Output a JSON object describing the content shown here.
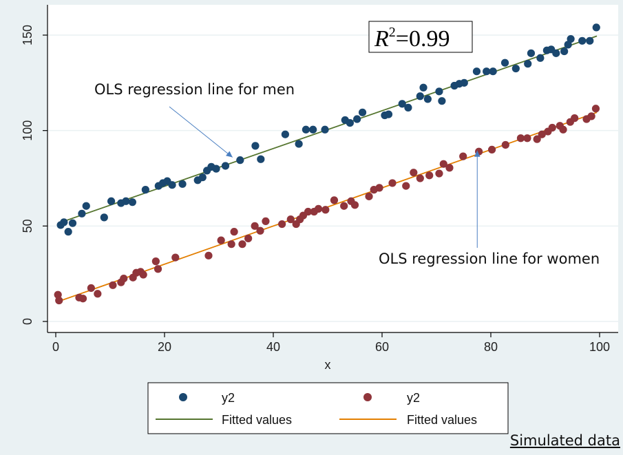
{
  "chart_data": {
    "type": "scatter",
    "title": "",
    "xlabel": "x",
    "ylabel": "",
    "xlim": [
      -2,
      101
    ],
    "ylim": [
      -2,
      157
    ],
    "xticks": [
      0,
      20,
      40,
      60,
      80,
      100
    ],
    "yticks": [
      0,
      50,
      100,
      150
    ],
    "xtick_labels": [
      "0",
      "20",
      "40",
      "60",
      "80",
      "100"
    ],
    "ytick_labels": [
      "0",
      "50",
      "100",
      "150"
    ],
    "grid": true,
    "colors": {
      "men": "#1a476f",
      "women": "#90353b",
      "fit_men": "#55752f",
      "fit_women": "#e37e00",
      "background": "#eaf1f3"
    },
    "series": [
      {
        "name": "y2",
        "kind": "scatter",
        "group": "men",
        "x": [
          0.9,
          1.5,
          2.3,
          3.1,
          4.8,
          5.6,
          8.9,
          10.2,
          12.0,
          12.9,
          14.1,
          16.5,
          18.9,
          19.7,
          20.5,
          21.4,
          23.3,
          26.1,
          27.0,
          27.8,
          28.6,
          29.5,
          31.2,
          33.9,
          36.7,
          37.7,
          42.2,
          44.7,
          46.0,
          47.3,
          49.5,
          53.2,
          54.1,
          55.4,
          56.4,
          60.5,
          61.2,
          63.7,
          64.8,
          67.0,
          67.6,
          68.4,
          70.5,
          71.0,
          73.3,
          74.2,
          75.1,
          77.4,
          79.2,
          80.4,
          82.6,
          84.6,
          86.8,
          87.4,
          89.1,
          90.3,
          91.1,
          92.0,
          93.5,
          94.2,
          94.7,
          96.8,
          98.2,
          99.4
        ],
        "y": [
          50.5,
          52.0,
          47.0,
          51.5,
          56.5,
          60.5,
          54.5,
          63.0,
          62.0,
          63.0,
          62.5,
          69.0,
          71.0,
          72.5,
          73.5,
          71.5,
          72.0,
          74.0,
          75.5,
          79.0,
          81.0,
          80.0,
          81.5,
          84.5,
          92.0,
          85.0,
          98.0,
          93.0,
          100.5,
          100.5,
          100.5,
          105.5,
          104.0,
          106.0,
          109.5,
          108.0,
          108.5,
          114.0,
          112.0,
          118.0,
          122.5,
          116.5,
          120.5,
          115.5,
          123.5,
          124.5,
          125.0,
          131.0,
          131.0,
          131.0,
          135.5,
          132.5,
          135.0,
          140.5,
          138.0,
          142.0,
          142.5,
          140.5,
          141.5,
          145.0,
          148.0,
          147.0,
          147.0,
          154.0
        ]
      },
      {
        "name": "Fitted values",
        "kind": "line",
        "group": "men",
        "x": [
          0.5,
          99.5
        ],
        "y": [
          51.5,
          149.5
        ]
      },
      {
        "name": "y2",
        "kind": "scatter",
        "group": "women",
        "x": [
          0.4,
          0.6,
          4.3,
          5.0,
          6.5,
          7.7,
          10.5,
          12.0,
          12.5,
          14.2,
          14.8,
          15.6,
          16.1,
          18.4,
          18.8,
          22.0,
          28.1,
          30.4,
          32.3,
          32.8,
          34.3,
          35.4,
          36.6,
          37.6,
          38.6,
          41.6,
          43.2,
          44.2,
          44.9,
          45.5,
          46.4,
          47.5,
          48.3,
          49.6,
          51.2,
          53.0,
          54.3,
          55.0,
          57.6,
          58.5,
          59.5,
          61.9,
          64.4,
          65.8,
          67.0,
          68.7,
          70.5,
          71.3,
          72.4,
          74.9,
          77.8,
          80.2,
          82.7,
          85.5,
          86.7,
          88.5,
          89.4,
          90.5,
          91.3,
          92.7,
          93.3,
          94.6,
          95.4,
          97.6,
          98.5,
          99.3
        ],
        "y": [
          14.0,
          11.0,
          12.5,
          12.0,
          17.5,
          14.5,
          19.0,
          20.5,
          22.5,
          23.0,
          25.5,
          26.0,
          24.5,
          31.5,
          27.5,
          33.5,
          34.5,
          42.5,
          40.5,
          47.0,
          40.5,
          43.5,
          50.0,
          47.5,
          52.5,
          51.0,
          53.5,
          51.0,
          53.5,
          55.5,
          57.5,
          57.5,
          59.0,
          58.5,
          63.5,
          60.5,
          63.0,
          61.0,
          65.5,
          69.0,
          70.0,
          72.5,
          71.0,
          78.0,
          75.0,
          76.5,
          77.5,
          82.5,
          80.5,
          86.5,
          89.0,
          90.0,
          92.5,
          96.0,
          96.0,
          95.5,
          98.0,
          99.5,
          101.5,
          102.5,
          100.5,
          104.5,
          106.5,
          106.0,
          107.5,
          111.5
        ]
      },
      {
        "name": "Fitted values",
        "kind": "line",
        "group": "women",
        "x": [
          0.5,
          99.5
        ],
        "y": [
          10.5,
          109.5
        ]
      }
    ],
    "annotations": [
      {
        "text": "OLS regression line for men",
        "arrow_to": [
          32.5,
          86.0
        ]
      },
      {
        "text": "OLS regression line for women",
        "arrow_to": [
          77.5,
          89.5
        ]
      }
    ],
    "r2": {
      "label": "R",
      "superscript": "2",
      "equals": "=0.99"
    },
    "legend": {
      "placement": "bottom",
      "entries": [
        {
          "label": "y2",
          "marker": "dot",
          "group": "men"
        },
        {
          "label": "y2",
          "marker": "dot",
          "group": "women"
        },
        {
          "label": "Fitted values",
          "marker": "line",
          "group": "men"
        },
        {
          "label": "Fitted values",
          "marker": "line",
          "group": "women"
        }
      ]
    },
    "source_note": "Simulated data"
  }
}
